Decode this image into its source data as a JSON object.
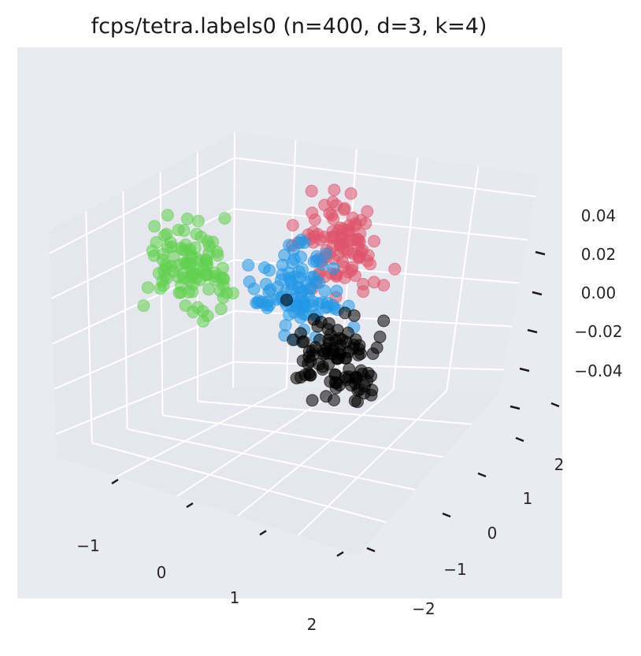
{
  "chart_data": {
    "type": "scatter",
    "title": "fcps/tetra.labels0 (n=400, d=3, k=4)",
    "projection": "3d",
    "grid": true,
    "legend": "none",
    "xlim": [
      -1.7,
      2.5
    ],
    "ylim": [
      -2.3,
      2.3
    ],
    "zlim": [
      -0.055,
      0.055
    ],
    "x_ticks": [
      "−1",
      "0",
      "1",
      "2"
    ],
    "y_ticks": [
      "−2",
      "−1",
      "0",
      "1",
      "2"
    ],
    "z_ticks": [
      "−0.04",
      "−0.02",
      "0.00",
      "0.02",
      "0.04"
    ],
    "series": [
      {
        "color": "#df536b",
        "n": 100,
        "center": [
          0.55,
          1.6,
          0.0
        ],
        "spread": 0.45
      },
      {
        "color": "#2297e6",
        "n": 100,
        "center": [
          0.6,
          0.2,
          0.0
        ],
        "spread": 0.45
      },
      {
        "color": "#61d04f",
        "n": 100,
        "center": [
          -0.9,
          0.0,
          0.0
        ],
        "spread": 0.45
      },
      {
        "color": "#000000",
        "n": 100,
        "center": [
          1.6,
          -0.9,
          0.0
        ],
        "spread": 0.45
      }
    ]
  }
}
